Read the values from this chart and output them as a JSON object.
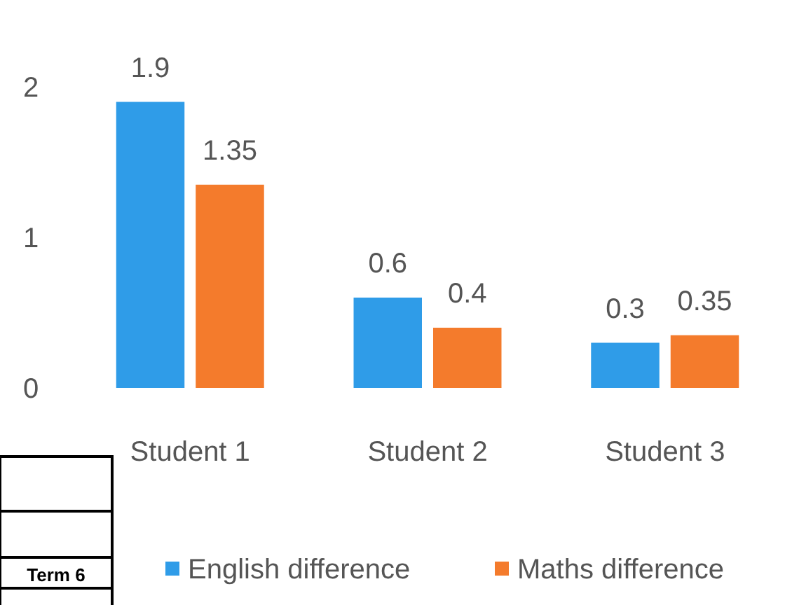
{
  "chart_data": {
    "type": "bar",
    "categories": [
      "Student 1",
      "Student 2",
      "Student 3"
    ],
    "series": [
      {
        "name": "English difference",
        "color": "#2f9ce8",
        "values": [
          1.9,
          0.6,
          0.3
        ]
      },
      {
        "name": "Maths difference",
        "color": "#f47b2c",
        "values": [
          1.35,
          0.4,
          0.35
        ]
      }
    ],
    "ylim": [
      0,
      2
    ],
    "yticks": [
      0,
      1,
      2
    ],
    "grid": false,
    "legend": "bottom",
    "data_labels": true,
    "annotations": [
      "Term 6"
    ]
  }
}
